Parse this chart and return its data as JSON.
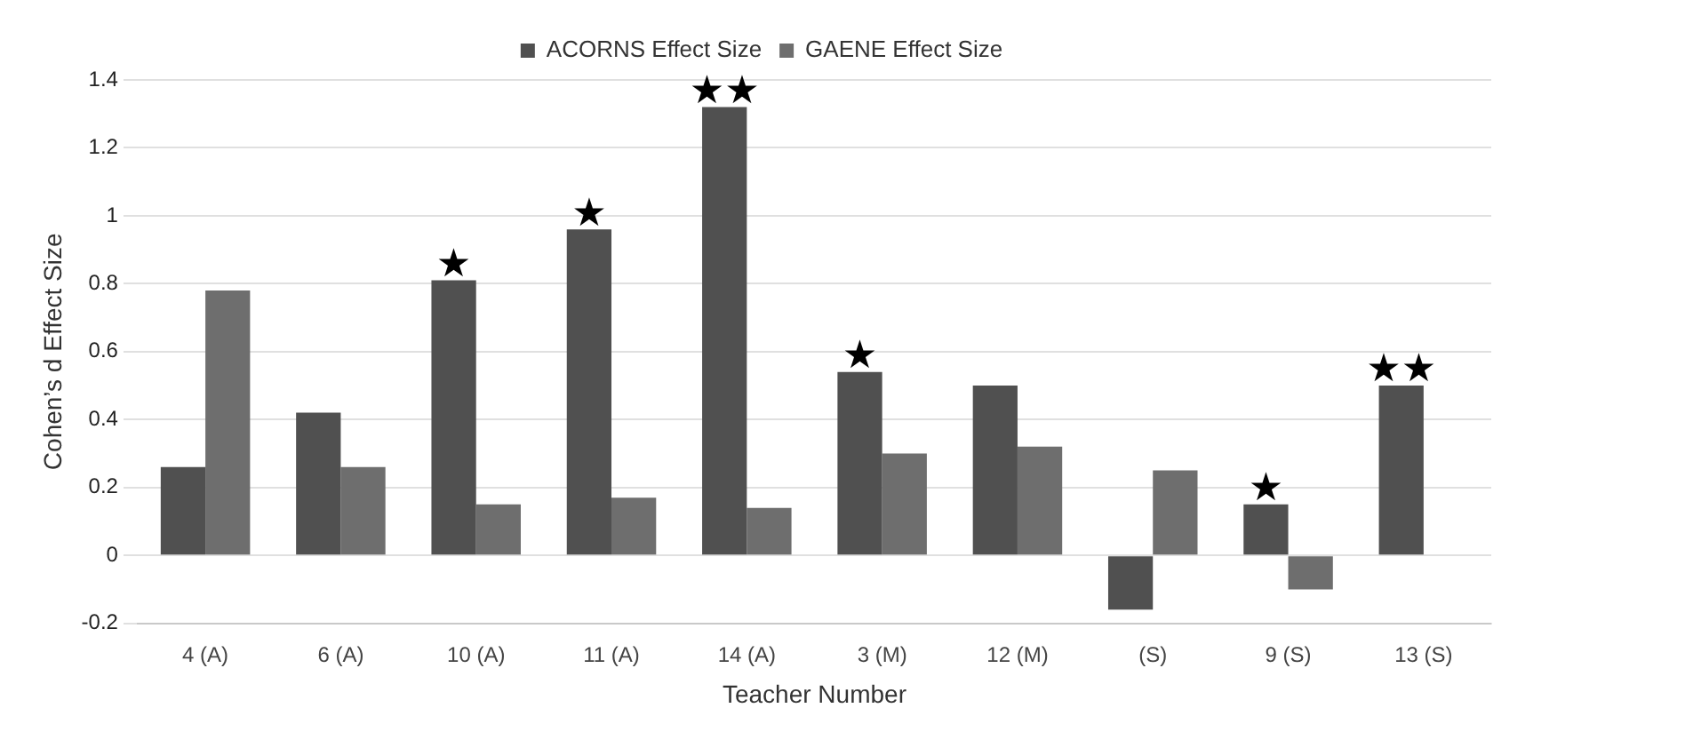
{
  "chart_data": {
    "type": "bar",
    "xlabel": "Teacher Number",
    "ylabel": "Cohen’s d Effect Size",
    "categories": [
      "4 (A)",
      "6 (A)",
      "10 (A)",
      "11 (A)",
      "14 (A)",
      "3 (M)",
      "12 (M)",
      "(S)",
      "9 (S)",
      "13 (S)"
    ],
    "series": [
      {
        "name": "ACORNS Effect Size",
        "color": "#505050",
        "values": [
          0.26,
          0.42,
          0.81,
          0.96,
          1.32,
          0.54,
          0.5,
          -0.16,
          0.15,
          0.5
        ]
      },
      {
        "name": "GAENE Effect Size",
        "color": "#6e6e6e",
        "values": [
          0.78,
          0.26,
          0.15,
          0.17,
          0.14,
          0.3,
          0.32,
          0.25,
          -0.1,
          null
        ]
      }
    ],
    "ylim": [
      -0.2,
      1.4
    ],
    "yticks": [
      -0.2,
      0,
      0.2,
      0.4,
      0.6,
      0.8,
      1,
      1.2,
      1.4
    ],
    "grid": "y",
    "legend": "top",
    "annotations": [
      {
        "text": "★",
        "x": "10 (A)",
        "y": 0.81
      },
      {
        "text": "★",
        "x": "11 (A)",
        "y": 0.96
      },
      {
        "text": "★★",
        "x": "14 (A)",
        "y": 1.32
      },
      {
        "text": "★",
        "x": "3 (M)",
        "y": 0.54
      },
      {
        "text": "★",
        "x": "9 (S)",
        "y": 0.15
      },
      {
        "text": "★★",
        "x": "13 (S)",
        "y": 0.5
      }
    ]
  }
}
